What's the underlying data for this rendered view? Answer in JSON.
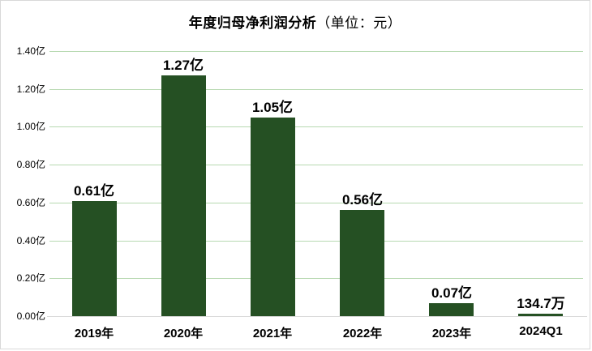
{
  "title": {
    "main": "年度归母净利润分析",
    "unit": "（单位：元）"
  },
  "colors": {
    "bar": "#255023",
    "gridline": "#b7d9b1",
    "axis_line": "#d9d9d9",
    "border": "#d9d9d9",
    "text": "#000000",
    "background": "#ffffff"
  },
  "chart_data": {
    "type": "bar",
    "title": "年度归母净利润分析（单位：元）",
    "categories": [
      "2019年",
      "2020年",
      "2021年",
      "2022年",
      "2023年",
      "2024Q1"
    ],
    "values": [
      0.61,
      1.27,
      1.05,
      0.56,
      0.07,
      0.01347
    ],
    "bar_labels": [
      "0.61亿",
      "1.27亿",
      "1.05亿",
      "0.56亿",
      "0.07亿",
      "134.7万"
    ],
    "value_unit": "亿",
    "ylim": [
      0,
      1.4
    ],
    "ytick_step": 0.2,
    "ytick_labels": [
      "0.00亿",
      "0.20亿",
      "0.40亿",
      "0.60亿",
      "0.80亿",
      "1.00亿",
      "1.20亿",
      "1.40亿"
    ],
    "grid": true,
    "legend": "none",
    "xlabel": "",
    "ylabel": ""
  }
}
